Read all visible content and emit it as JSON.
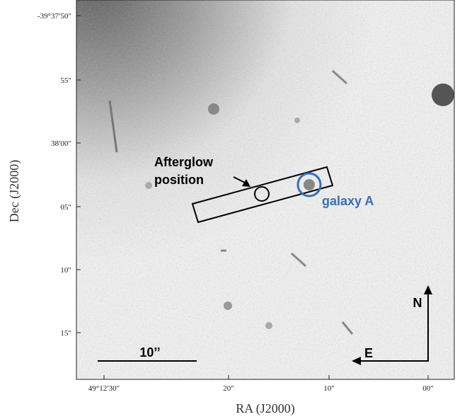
{
  "axes": {
    "x_label": "RA (J2000)",
    "y_label": "Dec (J2000)",
    "x_ticks": [
      "49°12′30″",
      "20″",
      "10″",
      "00″"
    ],
    "y_ticks": [
      "-39°37′50″",
      "55″",
      "38′00″",
      "05″",
      "10″",
      "15″"
    ]
  },
  "annotations": {
    "afterglow_label": [
      "Afterglow",
      "position"
    ],
    "galaxy_label": "galaxy A",
    "scale_bar": "10’’",
    "north": "N",
    "east": "E"
  }
}
